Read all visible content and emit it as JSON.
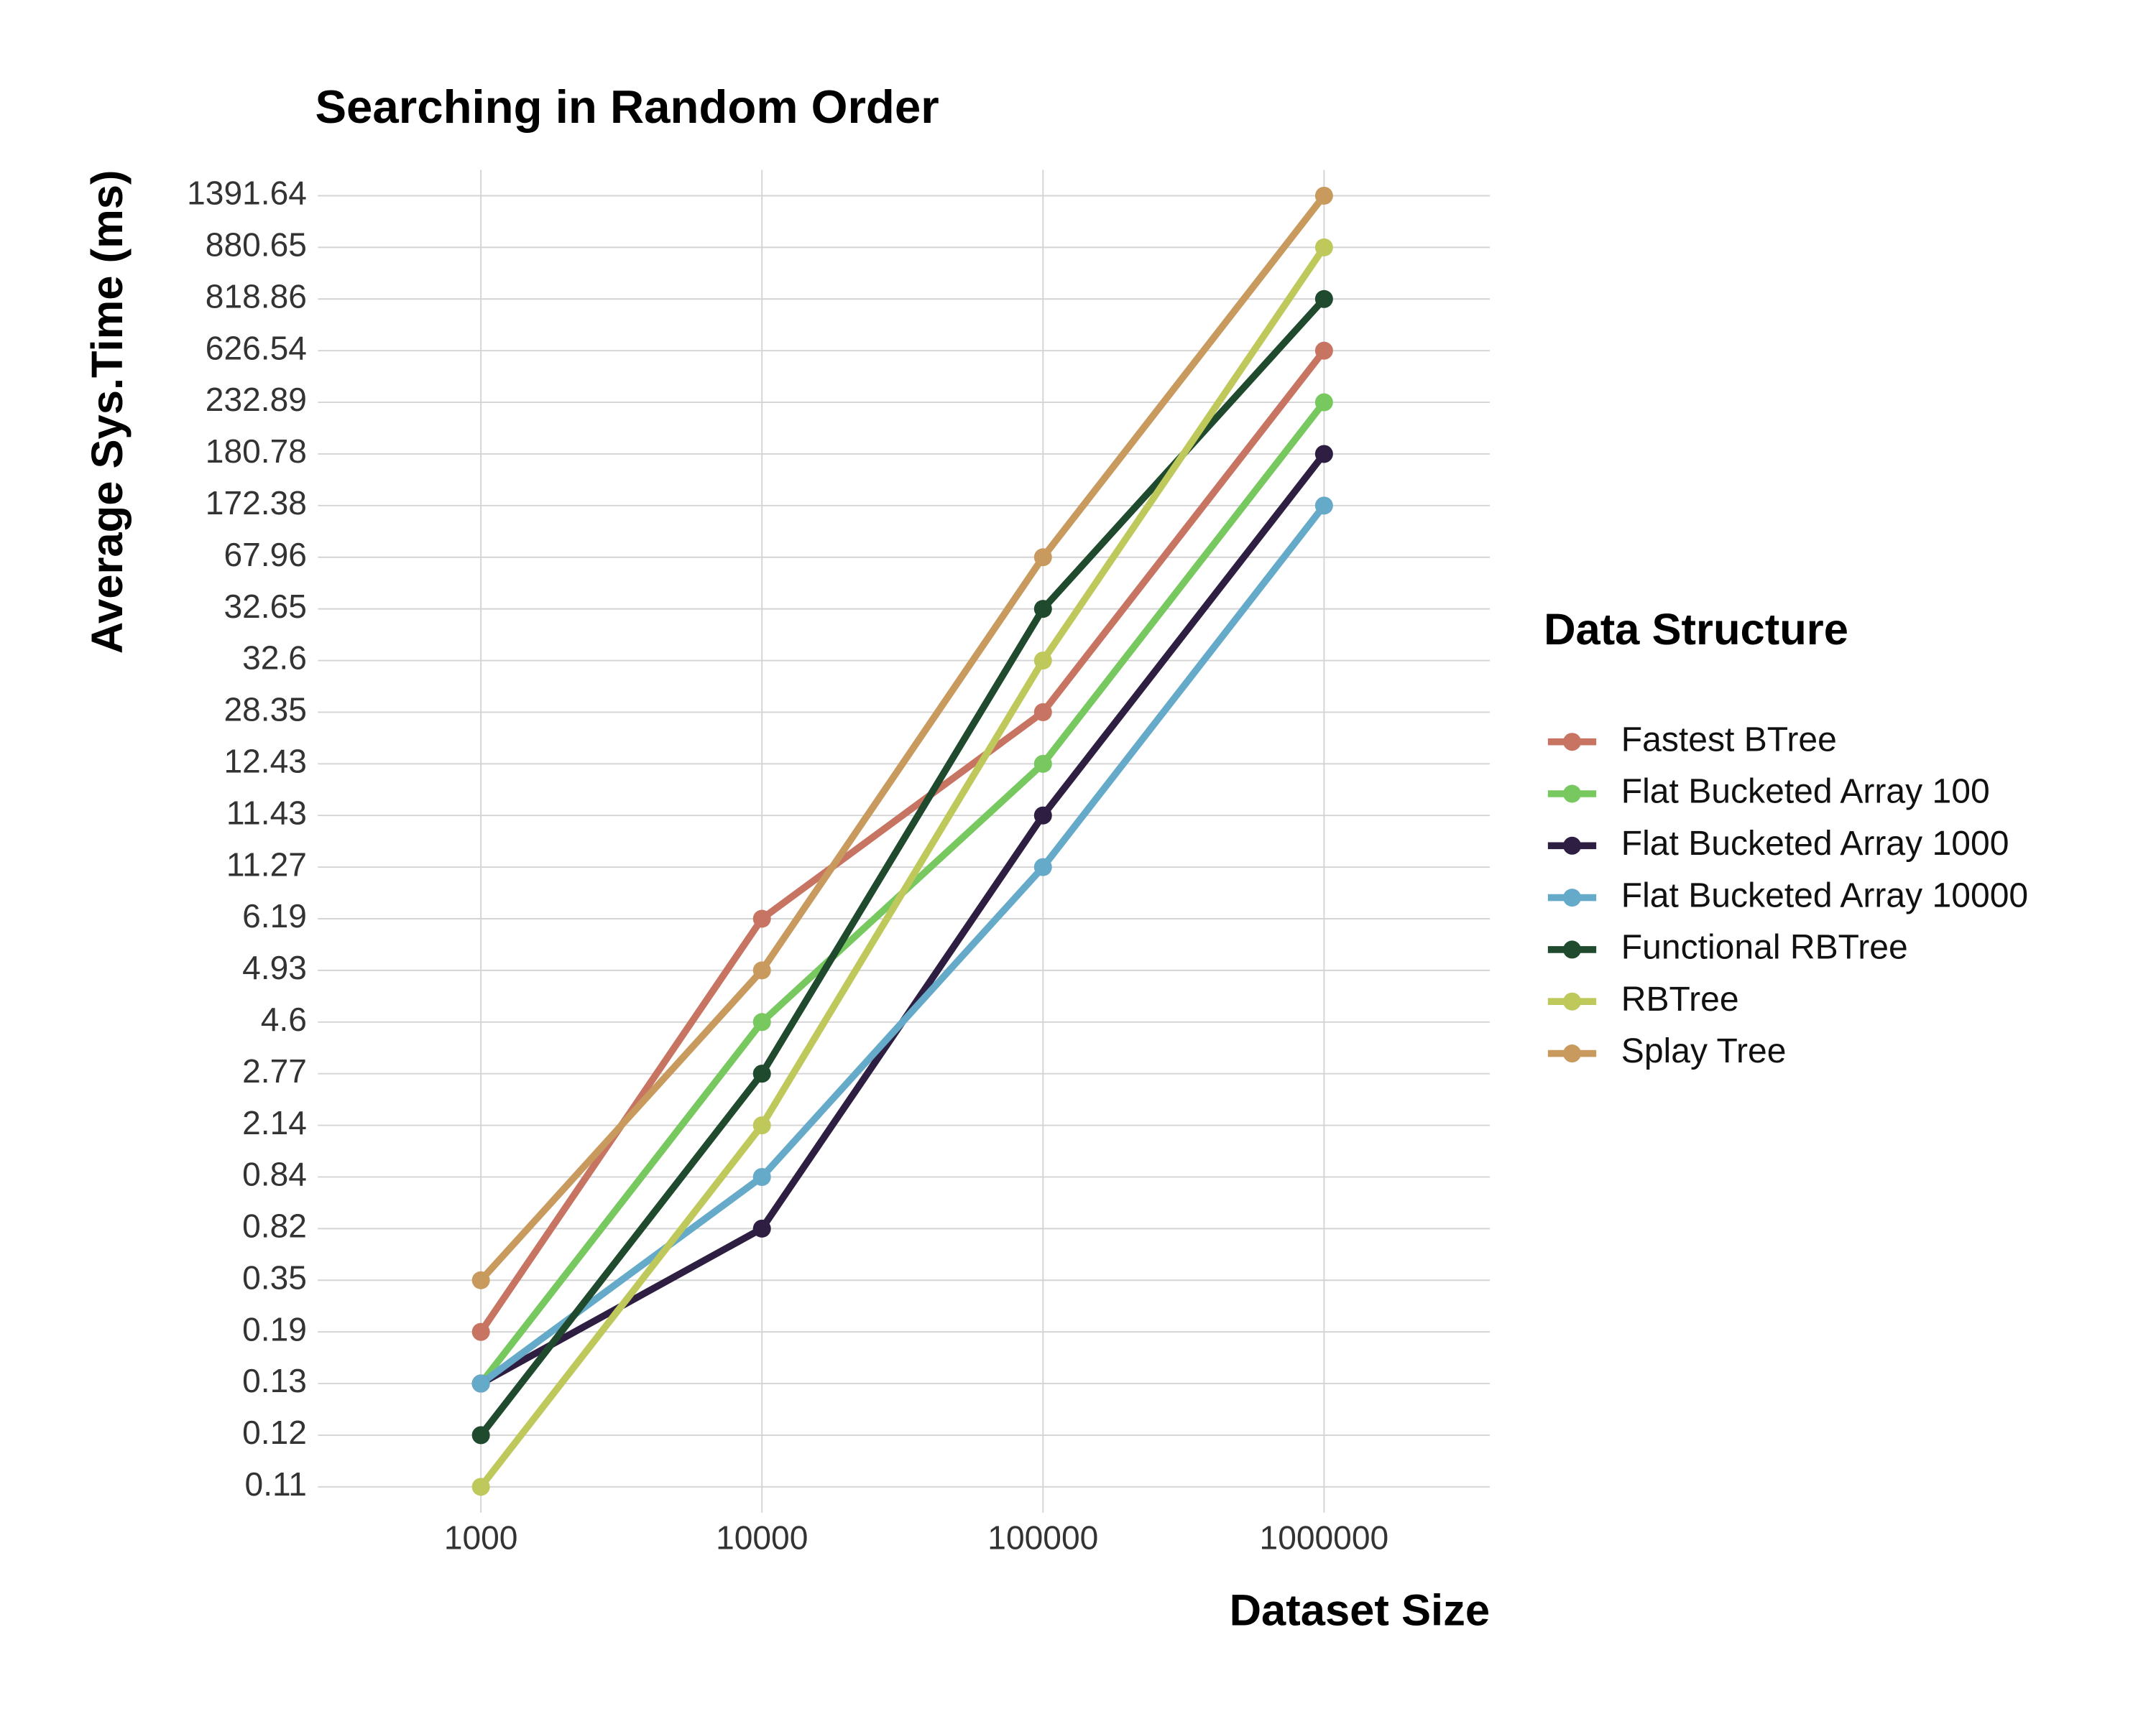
{
  "chart_data": {
    "type": "line",
    "title": "Searching in Random Order",
    "x_label": "Dataset Size",
    "y_label": "Average Sys.Time (ms)",
    "x": [
      1000,
      10000,
      100000,
      1000000
    ],
    "x_scale": "log",
    "xlim": [
      263,
      3890000
    ],
    "xticks": [
      1000,
      10000,
      100000,
      1000000
    ],
    "y_scale": "categorical",
    "yticks": [
      0.11,
      0.12,
      0.13,
      0.19,
      0.35,
      0.82,
      0.84,
      2.14,
      2.77,
      4.6,
      4.93,
      6.19,
      11.27,
      11.43,
      12.43,
      28.35,
      32.6,
      32.65,
      67.96,
      172.38,
      180.78,
      232.89,
      626.54,
      818.86,
      880.65,
      1391.64
    ],
    "grid": true,
    "legend_title": "Data Structure",
    "legend_position": "right",
    "series": [
      {
        "name": "Fastest BTree",
        "color": "#c87463",
        "values": [
          0.19,
          6.19,
          28.35,
          626.54
        ]
      },
      {
        "name": "Flat Bucketed Array 100",
        "color": "#78c860",
        "values": [
          0.13,
          4.6,
          12.43,
          232.89
        ]
      },
      {
        "name": "Flat Bucketed Array 1000",
        "color": "#2e1e42",
        "values": [
          0.13,
          0.82,
          11.43,
          180.78
        ]
      },
      {
        "name": "Flat Bucketed Array 10000",
        "color": "#65aac8",
        "values": [
          0.13,
          0.84,
          11.27,
          172.38
        ]
      },
      {
        "name": "Functional RBTree",
        "color": "#1f4a2e",
        "values": [
          0.12,
          2.77,
          32.65,
          818.86
        ]
      },
      {
        "name": "RBTree",
        "color": "#bfc85a",
        "values": [
          0.11,
          2.14,
          32.6,
          880.65
        ]
      },
      {
        "name": "Splay Tree",
        "color": "#c89a5e",
        "values": [
          0.35,
          4.93,
          67.96,
          1391.64
        ]
      }
    ]
  }
}
